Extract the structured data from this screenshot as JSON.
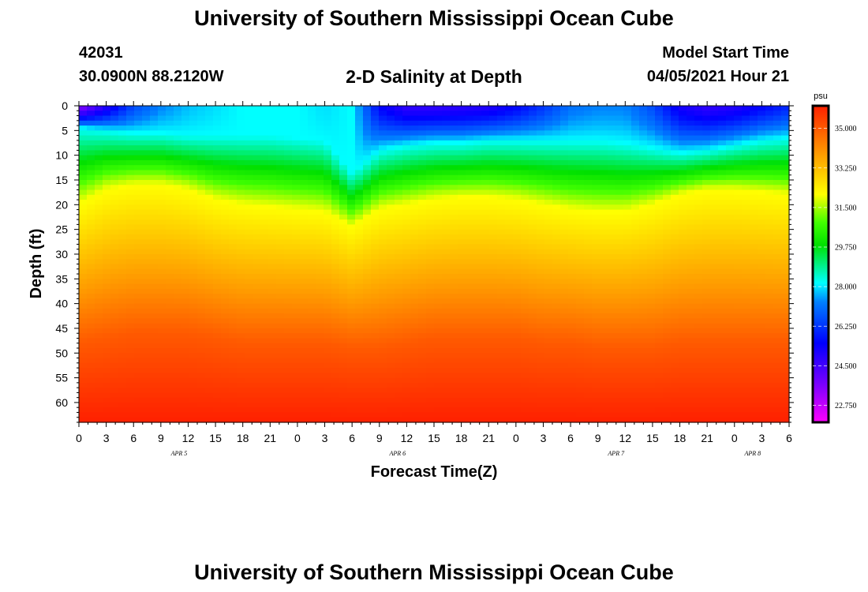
{
  "title_top": "University of Southern Mississippi Ocean Cube",
  "title_bottom": "University of Southern Mississippi Ocean Cube",
  "station": {
    "id": "42031",
    "coords": "30.0900N  88.2120W"
  },
  "plot_title": "2-D Salinity at Depth",
  "model_start": {
    "label": "Model Start Time",
    "value": "04/05/2021 Hour 21"
  },
  "chart_data": {
    "type": "heatmap",
    "title": "2-D Salinity at Depth",
    "xlabel": "Forecast Time(Z)",
    "ylabel": "Depth (ft)",
    "colorbar_unit": "psu",
    "x_ticks": [
      "0",
      "3",
      "6",
      "9",
      "12",
      "15",
      "18",
      "21",
      "0",
      "3",
      "6",
      "9",
      "12",
      "15",
      "18",
      "21",
      "0",
      "3",
      "6",
      "9",
      "12",
      "15",
      "18",
      "21",
      "0",
      "3",
      "6"
    ],
    "x_hours_since_apr5_00z": [
      0,
      3,
      6,
      9,
      12,
      15,
      18,
      21,
      24,
      27,
      30,
      33,
      36,
      39,
      42,
      45,
      48,
      51,
      54,
      57,
      60,
      63,
      66,
      69,
      72,
      75,
      78
    ],
    "date_labels": [
      {
        "text": "APR 5",
        "hour": 11
      },
      {
        "text": "APR 6",
        "hour": 35
      },
      {
        "text": "APR 7",
        "hour": 59
      },
      {
        "text": "APR 8",
        "hour": 74
      }
    ],
    "y_ticks": [
      0,
      5,
      10,
      15,
      20,
      25,
      30,
      35,
      40,
      45,
      50,
      55,
      60
    ],
    "ylim": [
      0,
      64
    ],
    "xlim": [
      0,
      78
    ],
    "colorbar_ticks": [
      "35.000",
      "33.250",
      "31.500",
      "29.750",
      "28.000",
      "26.250",
      "24.500",
      "22.750"
    ],
    "colorbar_values": [
      35.0,
      33.25,
      31.5,
      29.75,
      28.0,
      26.25,
      24.5,
      22.75
    ],
    "colorbar_range": [
      22.0,
      36.0
    ],
    "profile_model": {
      "note": "salinity (psu) vs depth (ft) in each time column",
      "hours": [
        0,
        3,
        6,
        9,
        12,
        15,
        18,
        21,
        24,
        27,
        30,
        33,
        36,
        39,
        42,
        45,
        48,
        51,
        54,
        57,
        60,
        63,
        66,
        69,
        72,
        75,
        78
      ],
      "surface_psu": [
        23.5,
        25.0,
        26.5,
        27.2,
        27.6,
        27.8,
        28.0,
        28.0,
        28.0,
        27.8,
        28.0,
        25.5,
        24.8,
        24.8,
        24.9,
        25.0,
        25.5,
        26.2,
        27.0,
        27.2,
        27.2,
        26.5,
        25.2,
        24.8,
        25.0,
        25.5,
        26.0
      ],
      "depth_28psu_ft": [
        4.5,
        5.0,
        5.5,
        5.5,
        6.0,
        6.0,
        6.0,
        6.0,
        6.5,
        7.0,
        13.5,
        9.0,
        8.0,
        7.5,
        7.5,
        7.0,
        7.0,
        7.0,
        7.0,
        7.0,
        7.5,
        8.5,
        9.5,
        9.0,
        8.0,
        7.0,
        6.5
      ],
      "depth_32psu_ft": [
        20.0,
        17.0,
        16.0,
        16.0,
        17.0,
        19.0,
        20.0,
        20.5,
        21.0,
        21.5,
        24.5,
        21.0,
        20.0,
        19.0,
        18.5,
        18.5,
        19.0,
        20.0,
        21.0,
        21.5,
        21.5,
        20.0,
        18.0,
        17.0,
        17.0,
        17.5,
        18.0
      ],
      "depth_35psu_ft": [
        48,
        47,
        46,
        46,
        46,
        47,
        48,
        48,
        48,
        48,
        49,
        49,
        48,
        47,
        47,
        47,
        47,
        48,
        48,
        49,
        49,
        49,
        48,
        48,
        48,
        48,
        48
      ],
      "bottom_psu": 36.0
    }
  },
  "colors": {
    "plot_border": "#000000",
    "colorbar_border": "#000000"
  }
}
